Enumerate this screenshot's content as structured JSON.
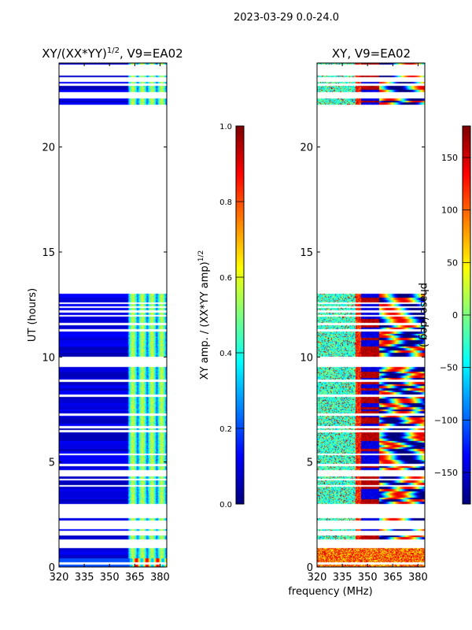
{
  "chart_data": {
    "type": "heatmap",
    "suptitle": "2023-03-29 0.0-24.0",
    "xlabel": "frequency (MHz)",
    "panels": [
      {
        "id": "amp",
        "title": "XY/(XX*YY)",
        "title_sup": "1/2",
        "title_suffix": ", V9=EA02",
        "ylabel": "UT (hours)",
        "xlim": [
          320,
          384
        ],
        "ylim": [
          0,
          24
        ],
        "xticks": [
          320,
          335,
          350,
          365,
          380
        ],
        "yticks": [
          0,
          5,
          10,
          15,
          20
        ],
        "colormap": "jet",
        "colorbar": {
          "label": "XY amp. / (XX*YY amp)",
          "label_sup": "1/2",
          "range": [
            0.0,
            1.0
          ],
          "ticks": [
            "0.0",
            "0.2",
            "0.4",
            "0.6",
            "0.8",
            "1.0"
          ],
          "tick_values": [
            0.0,
            0.2,
            0.4,
            0.6,
            0.8,
            1.0
          ]
        },
        "typical_values": {
          "below_362MHz": 0.08,
          "362_to_384MHz": 0.45
        }
      },
      {
        "id": "phase",
        "title": "XY, V9=EA02",
        "xlim": [
          320,
          384
        ],
        "ylim": [
          0,
          24
        ],
        "xticks": [
          320,
          335,
          350,
          365,
          380
        ],
        "yticks": [
          0,
          5,
          10,
          15,
          20
        ],
        "colormap": "jet",
        "colorbar": {
          "label": "phase (deg.)",
          "range": [
            -180,
            180
          ],
          "ticks": [
            "−150",
            "−100",
            "−50",
            "0",
            "50",
            "100",
            "150"
          ],
          "tick_values": [
            -150,
            -100,
            -50,
            0,
            50,
            100,
            150
          ]
        }
      }
    ],
    "data_coverage_hours": [
      [
        0.0,
        3.0
      ],
      [
        3.0,
        13.0
      ],
      [
        22.0,
        24.0
      ]
    ]
  }
}
